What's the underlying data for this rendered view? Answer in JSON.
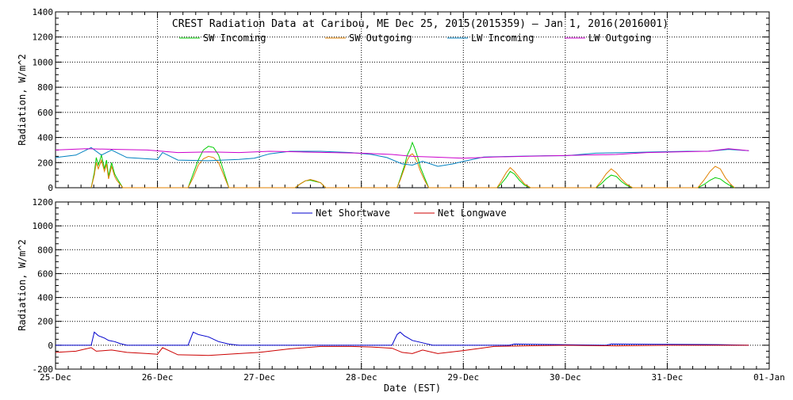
{
  "chart_data": [
    {
      "type": "line",
      "title": "CREST Radiation Data at Caribou, ME   Dec 25, 2015(2015359) – Jan  1, 2016(2016001)",
      "xlabel": "",
      "ylabel": "Radiation, W/m^2",
      "ylim": [
        0,
        1400
      ],
      "xlim": [
        0,
        7
      ],
      "yticks": [
        0,
        200,
        400,
        600,
        800,
        1000,
        1200,
        1400
      ],
      "xtick_labels": [
        "25-Dec",
        "26-Dec",
        "27-Dec",
        "28-Dec",
        "29-Dec",
        "30-Dec",
        "31-Dec",
        "01-Jan"
      ],
      "grid": true,
      "legend_position": "top",
      "series": [
        {
          "name": "SW Incoming",
          "color": "#00cc00",
          "x": [
            0.35,
            0.38,
            0.4,
            0.42,
            0.45,
            0.48,
            0.5,
            0.52,
            0.55,
            0.58,
            0.6,
            0.63,
            0.66,
            1.3,
            1.35,
            1.4,
            1.45,
            1.5,
            1.55,
            1.6,
            1.65,
            1.7,
            2.35,
            2.4,
            2.45,
            2.5,
            2.55,
            2.6,
            2.65,
            3.35,
            3.38,
            3.42,
            3.45,
            3.48,
            3.5,
            3.52,
            3.55,
            3.58,
            3.62,
            3.66,
            4.33,
            4.37,
            4.42,
            4.46,
            4.5,
            4.55,
            4.6,
            4.66,
            5.3,
            5.35,
            5.4,
            5.45,
            5.5,
            5.55,
            5.6,
            5.66,
            6.3,
            6.36,
            6.42,
            6.47,
            6.52,
            6.57,
            6.62,
            6.66
          ],
          "y": [
            0,
            120,
            240,
            180,
            260,
            150,
            220,
            90,
            200,
            110,
            80,
            40,
            0,
            0,
            110,
            220,
            300,
            330,
            320,
            260,
            130,
            0,
            0,
            30,
            55,
            60,
            50,
            40,
            0,
            0,
            70,
            170,
            260,
            310,
            360,
            320,
            250,
            160,
            80,
            0,
            0,
            30,
            80,
            130,
            110,
            60,
            20,
            0,
            0,
            30,
            70,
            100,
            90,
            50,
            20,
            0,
            0,
            25,
            60,
            80,
            70,
            40,
            15,
            0
          ]
        },
        {
          "name": "SW Outgoing",
          "color": "#e08000",
          "x": [
            0.35,
            0.38,
            0.4,
            0.42,
            0.45,
            0.48,
            0.5,
            0.52,
            0.55,
            0.58,
            0.6,
            0.63,
            0.66,
            1.3,
            1.35,
            1.4,
            1.45,
            1.5,
            1.55,
            1.6,
            1.65,
            1.7,
            2.35,
            2.4,
            2.45,
            2.5,
            2.55,
            2.6,
            2.65,
            3.35,
            3.38,
            3.42,
            3.45,
            3.48,
            3.5,
            3.52,
            3.55,
            3.58,
            3.62,
            3.66,
            4.33,
            4.37,
            4.42,
            4.46,
            4.5,
            4.55,
            4.6,
            4.66,
            5.3,
            5.35,
            5.4,
            5.45,
            5.5,
            5.55,
            5.6,
            5.66,
            6.3,
            6.36,
            6.42,
            6.47,
            6.52,
            6.57,
            6.62,
            6.66
          ],
          "y": [
            0,
            100,
            200,
            150,
            220,
            130,
            190,
            70,
            170,
            90,
            60,
            30,
            0,
            0,
            80,
            180,
            230,
            250,
            240,
            200,
            100,
            0,
            0,
            30,
            55,
            65,
            55,
            40,
            0,
            0,
            60,
            150,
            220,
            260,
            270,
            250,
            200,
            130,
            60,
            0,
            0,
            50,
            120,
            160,
            130,
            80,
            30,
            0,
            0,
            50,
            110,
            150,
            120,
            70,
            30,
            0,
            0,
            60,
            130,
            170,
            150,
            80,
            30,
            0
          ]
        },
        {
          "name": "LW Incoming",
          "color": "#0080c0",
          "x": [
            0,
            0.2,
            0.35,
            0.45,
            0.55,
            0.7,
            0.9,
            1.0,
            1.05,
            1.2,
            1.5,
            1.8,
            1.95,
            2.1,
            2.3,
            2.6,
            2.9,
            3.1,
            3.25,
            3.4,
            3.5,
            3.6,
            3.75,
            3.9,
            4.0,
            4.2,
            4.5,
            4.8,
            5.0,
            5.3,
            5.6,
            5.9,
            6.2,
            6.4,
            6.6,
            6.8
          ],
          "y": [
            240,
            260,
            320,
            260,
            300,
            240,
            230,
            225,
            280,
            220,
            215,
            225,
            235,
            270,
            290,
            290,
            280,
            265,
            240,
            190,
            180,
            210,
            170,
            190,
            210,
            245,
            250,
            255,
            255,
            275,
            280,
            285,
            290,
            290,
            305,
            295
          ]
        },
        {
          "name": "LW Outgoing",
          "color": "#cc00cc",
          "x": [
            0,
            0.3,
            0.6,
            0.9,
            1.2,
            1.5,
            1.8,
            2.1,
            2.4,
            2.7,
            3.0,
            3.3,
            3.5,
            3.7,
            4.0,
            4.3,
            4.6,
            4.9,
            5.2,
            5.5,
            5.8,
            6.1,
            6.4,
            6.6,
            6.8
          ],
          "y": [
            300,
            310,
            305,
            300,
            280,
            285,
            280,
            290,
            285,
            280,
            275,
            265,
            250,
            245,
            235,
            245,
            250,
            255,
            260,
            265,
            280,
            285,
            290,
            310,
            295
          ]
        }
      ]
    },
    {
      "type": "line",
      "title": "",
      "xlabel": "Date (EST)",
      "ylabel": "Radiation, W/m^2",
      "ylim": [
        -200,
        1200
      ],
      "xlim": [
        0,
        7
      ],
      "yticks": [
        -200,
        0,
        200,
        400,
        600,
        800,
        1000,
        1200
      ],
      "xtick_labels": [
        "25-Dec",
        "26-Dec",
        "27-Dec",
        "28-Dec",
        "29-Dec",
        "30-Dec",
        "31-Dec",
        "01-Jan"
      ],
      "grid": true,
      "legend_position": "top",
      "series": [
        {
          "name": "Net Shortwave",
          "color": "#0000cc",
          "x": [
            0,
            0.35,
            0.38,
            0.42,
            0.48,
            0.52,
            0.58,
            0.63,
            0.7,
            1.3,
            1.35,
            1.4,
            1.5,
            1.6,
            1.7,
            1.8,
            2.5,
            3.3,
            3.35,
            3.38,
            3.42,
            3.5,
            3.6,
            3.7,
            4.0,
            4.45,
            4.5,
            5.4,
            5.45,
            6.5,
            6.8
          ],
          "y": [
            0,
            0,
            110,
            80,
            60,
            40,
            30,
            15,
            0,
            0,
            110,
            90,
            70,
            30,
            10,
            0,
            0,
            0,
            90,
            110,
            80,
            40,
            20,
            0,
            0,
            0,
            10,
            0,
            10,
            5,
            0
          ]
        },
        {
          "name": "Net Longwave",
          "color": "#cc0000",
          "x": [
            0,
            0.2,
            0.35,
            0.4,
            0.55,
            0.7,
            0.9,
            1.0,
            1.05,
            1.2,
            1.5,
            1.8,
            2.0,
            2.3,
            2.6,
            2.9,
            3.1,
            3.3,
            3.4,
            3.5,
            3.6,
            3.75,
            4.0,
            4.3,
            4.6,
            5.0,
            5.5,
            6.0,
            6.5,
            6.8
          ],
          "y": [
            -60,
            -50,
            -20,
            -50,
            -40,
            -60,
            -70,
            -75,
            -20,
            -80,
            -85,
            -70,
            -60,
            -30,
            -10,
            -10,
            -15,
            -25,
            -60,
            -70,
            -40,
            -70,
            -45,
            -10,
            -5,
            0,
            -5,
            0,
            0,
            0
          ]
        }
      ]
    }
  ]
}
